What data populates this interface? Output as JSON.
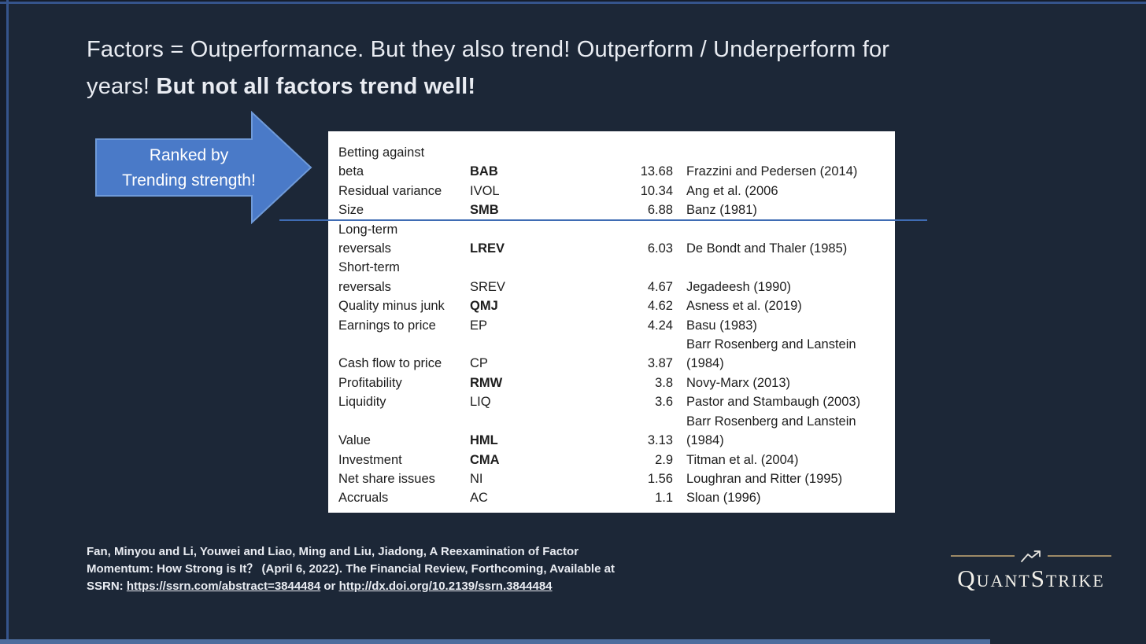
{
  "title": {
    "line1": "Factors = Outperformance. But they also trend! Outperform / Underperform for",
    "line2_regular": "years!",
    "line2_bold": "But not all factors trend well!"
  },
  "arrow": {
    "line1": "Ranked by",
    "line2": "Trending strength!"
  },
  "table": {
    "rows": [
      {
        "factor_lines": [
          "Betting against",
          "beta"
        ],
        "ticker": "BAB",
        "ticker_bold": true,
        "value": "13.68",
        "ref_lines": [
          "Frazzini and Pedersen (2014)"
        ]
      },
      {
        "factor_lines": [
          "Residual variance"
        ],
        "ticker": "IVOL",
        "ticker_bold": false,
        "value": "10.34",
        "ref_lines": [
          "Ang et al. (2006"
        ]
      },
      {
        "factor_lines": [
          "Size"
        ],
        "ticker": "SMB",
        "ticker_bold": true,
        "value": "6.88",
        "ref_lines": [
          "Banz (1981)"
        ]
      },
      {
        "factor_lines": [
          "Long-term",
          "reversals"
        ],
        "ticker": "LREV",
        "ticker_bold": true,
        "value": "6.03",
        "ref_lines": [
          "De Bondt and Thaler (1985)"
        ]
      },
      {
        "factor_lines": [
          "Short-term",
          "reversals"
        ],
        "ticker": "SREV",
        "ticker_bold": false,
        "value": "4.67",
        "ref_lines": [
          "Jegadeesh (1990)"
        ]
      },
      {
        "factor_lines": [
          "Quality minus junk"
        ],
        "ticker": "QMJ",
        "ticker_bold": true,
        "value": "4.62",
        "ref_lines": [
          "Asness et al. (2019)"
        ]
      },
      {
        "factor_lines": [
          "Earnings to price"
        ],
        "ticker": "EP",
        "ticker_bold": false,
        "value": "4.24",
        "ref_lines": [
          "Basu (1983)"
        ]
      },
      {
        "factor_lines": [
          "Cash flow to price"
        ],
        "ticker": "CP",
        "ticker_bold": false,
        "value": "3.87",
        "ref_lines": [
          "Barr Rosenberg and Lanstein",
          "(1984)"
        ]
      },
      {
        "factor_lines": [
          "Profitability"
        ],
        "ticker": "RMW",
        "ticker_bold": true,
        "value": "3.8",
        "ref_lines": [
          "Novy-Marx (2013)"
        ]
      },
      {
        "factor_lines": [
          "Liquidity"
        ],
        "ticker": "LIQ",
        "ticker_bold": false,
        "value": "3.6",
        "ref_lines": [
          "Pastor and Stambaugh (2003)"
        ]
      },
      {
        "factor_lines": [
          "Value"
        ],
        "ticker": "HML",
        "ticker_bold": true,
        "value": "3.13",
        "ref_lines": [
          "Barr Rosenberg and Lanstein",
          "(1984)"
        ]
      },
      {
        "factor_lines": [
          "Investment"
        ],
        "ticker": "CMA",
        "ticker_bold": true,
        "value": "2.9",
        "ref_lines": [
          "Titman et al. (2004)"
        ]
      },
      {
        "factor_lines": [
          "Net share issues"
        ],
        "ticker": "NI",
        "ticker_bold": false,
        "value": "1.56",
        "ref_lines": [
          "Loughran and Ritter (1995)"
        ]
      },
      {
        "factor_lines": [
          "Accruals"
        ],
        "ticker": "AC",
        "ticker_bold": false,
        "value": "1.1",
        "ref_lines": [
          "Sloan (1996)"
        ]
      }
    ]
  },
  "citation": {
    "line1": "Fan, Minyou and Li, Youwei and Liao, Ming and Liu, Jiadong, A Reexamination of Factor",
    "line2": "Momentum: How Strong is It？ (April 6, 2022). The Financial Review, Forthcoming, Available at",
    "line3_prefix": "SSRN:",
    "link1": "https://ssrn.com/abstract=3844484",
    "line3_or": "or",
    "link2": "http://dx.doi.org/10.2139/ssrn.3844484"
  },
  "logo": {
    "text": "QuantStrike",
    "icon": "trend-up-zigzag-arrow-icon"
  },
  "colors": {
    "slide_background": "#1c2737",
    "frame_line": "#35548c",
    "bottom_bar": "#4d6d9d",
    "arrow_fill": "#4a7ac8",
    "arrow_border": "#6f9ad8",
    "cutoff_line": "#3f6cb4",
    "table_background": "#ffffff",
    "logo_rule": "#9d8a66",
    "text_light": "#e9ecf2"
  }
}
